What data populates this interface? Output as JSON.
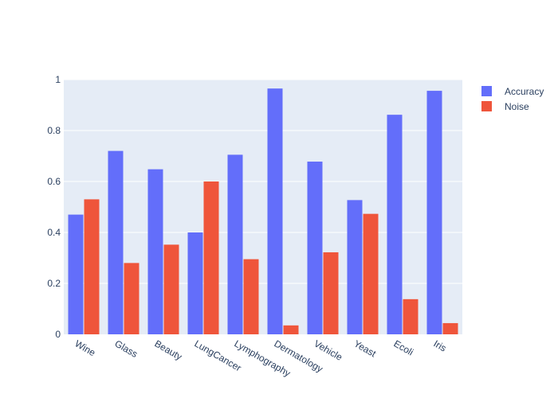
{
  "chart_data": {
    "type": "bar",
    "categories": [
      "Wine",
      "Glass",
      "Beauty",
      "LungCancer",
      "Lymphography",
      "Dermatology",
      "Vehicle",
      "Yeast",
      "Ecoli",
      "Iris"
    ],
    "series": [
      {
        "name": "Accuracy",
        "color": "#636efa",
        "values": [
          0.47,
          0.72,
          0.648,
          0.4,
          0.705,
          0.965,
          0.678,
          0.527,
          0.862,
          0.956
        ]
      },
      {
        "name": "Noise",
        "color": "#ef553b",
        "values": [
          0.53,
          0.28,
          0.352,
          0.6,
          0.295,
          0.035,
          0.322,
          0.473,
          0.138,
          0.044
        ]
      }
    ],
    "ylim": [
      0,
      1
    ],
    "yticks": [
      0,
      0.2,
      0.4,
      0.6,
      0.8,
      1
    ],
    "ytick_labels": [
      "0",
      "0.2",
      "0.4",
      "0.6",
      "0.8",
      "1"
    ],
    "legend_position": "top-right",
    "grid": true,
    "plot_background": "#e5ecf6"
  }
}
